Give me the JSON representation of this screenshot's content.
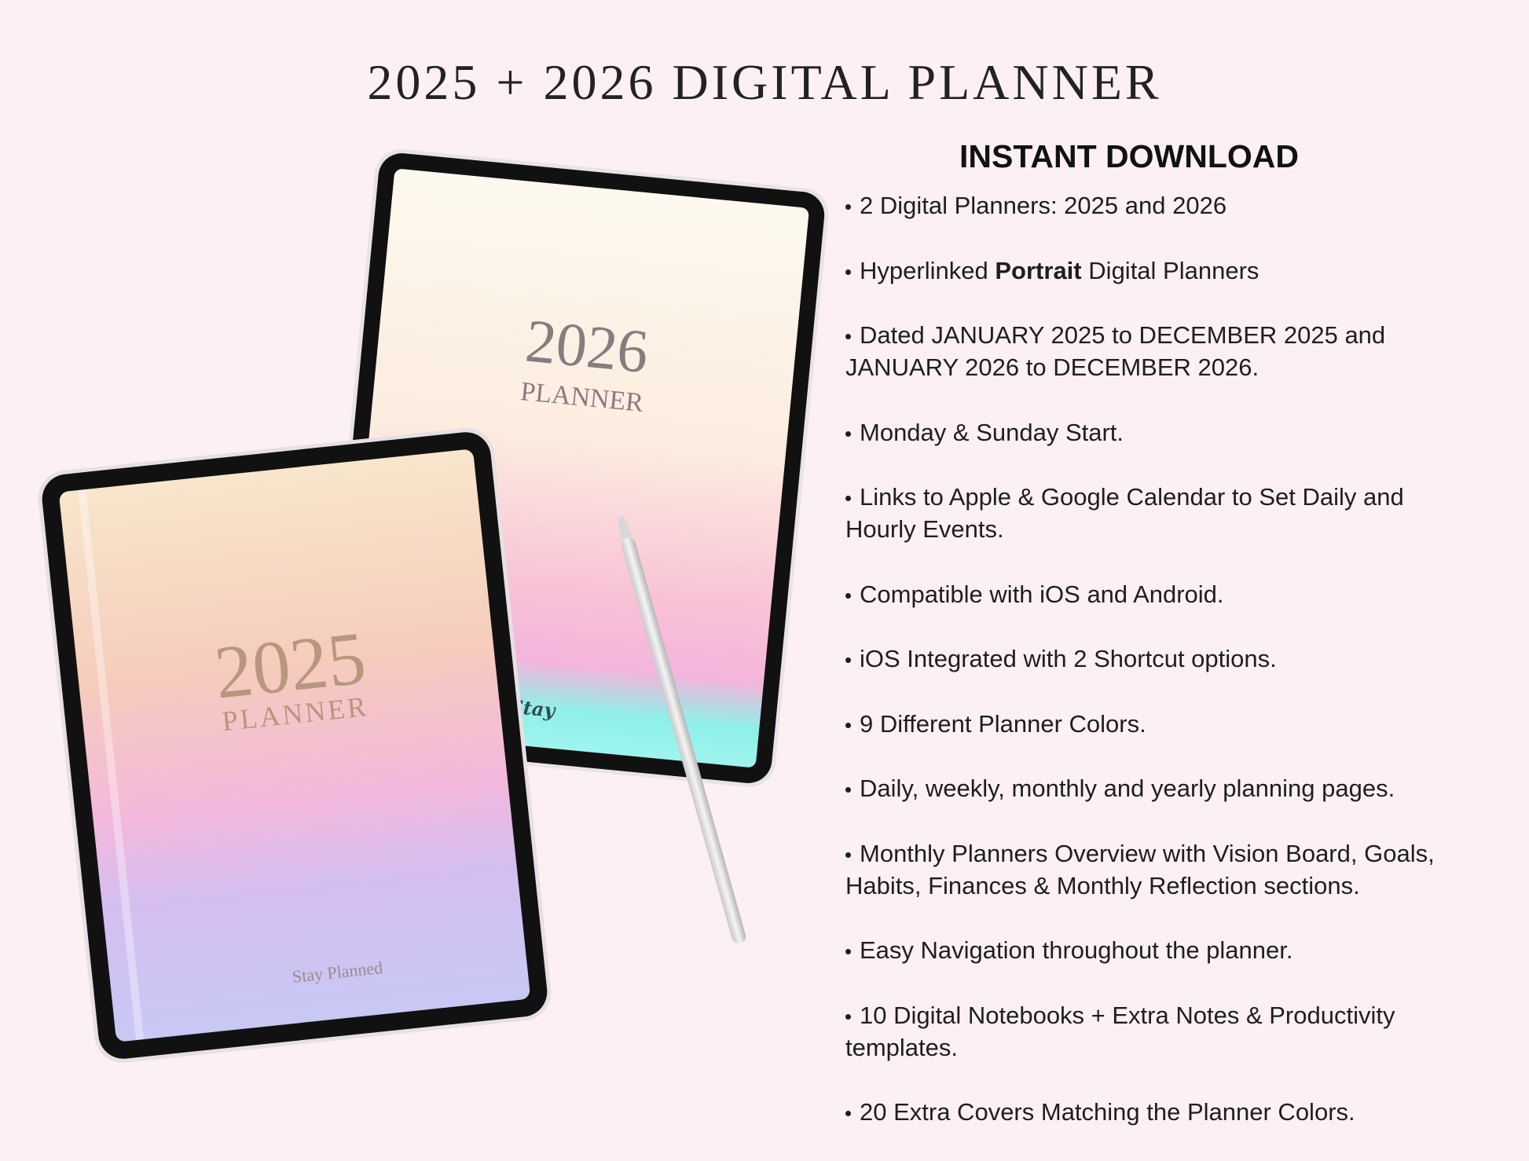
{
  "header": {
    "title": "2025 + 2026 DIGITAL PLANNER"
  },
  "tablets": [
    {
      "year": "2026",
      "label": "PLANNER",
      "brand": "Stay"
    },
    {
      "year": "2025",
      "label": "PLANNER",
      "brand": "Stay Planned"
    }
  ],
  "features": {
    "heading": "INSTANT DOWNLOAD",
    "items": [
      {
        "lines": [
          "2 Digital Planners: 2025 and 2026"
        ]
      },
      {
        "before": "Hyperlinked",
        "bold": "Portrait",
        "after": "Digital Planners"
      },
      {
        "lines": [
          "Dated JANUARY 2025 to DECEMBER 2025 and",
          "JANUARY 2026 to DECEMBER 2026."
        ]
      },
      {
        "lines": [
          "Monday & Sunday Start."
        ]
      },
      {
        "lines": [
          "Links to Apple & Google Calendar to Set Daily and",
          "Hourly Events."
        ]
      },
      {
        "lines": [
          "Compatible with iOS and Android."
        ]
      },
      {
        "lines": [
          "iOS Integrated with 2 Shortcut options."
        ]
      },
      {
        "lines": [
          "9 Different Planner Colors."
        ]
      },
      {
        "lines": [
          "Daily, weekly, monthly and yearly planning pages."
        ]
      },
      {
        "lines": [
          "Monthly Planners Overview with Vision Board, Goals,",
          "Habits, Finances & Monthly Reflection sections."
        ]
      },
      {
        "lines": [
          "Easy Navigation throughout the planner."
        ]
      },
      {
        "lines": [
          "10 Digital Notebooks + Extra Notes & Productivity",
          "templates."
        ]
      },
      {
        "lines": [
          "20 Extra Covers Matching the Planner Colors."
        ]
      }
    ]
  }
}
